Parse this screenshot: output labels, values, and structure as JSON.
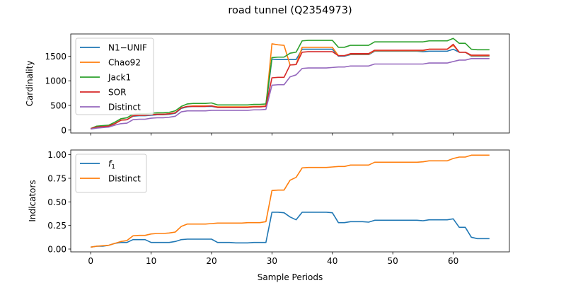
{
  "figure": {
    "title": "road tunnel (Q2354973)"
  },
  "chart_data": [
    {
      "type": "line",
      "title": "",
      "xlabel": "",
      "ylabel": "Cardinality",
      "xlim": [
        -3.3,
        69.3
      ],
      "ylim": [
        -60,
        1950
      ],
      "xticks": [
        0,
        10,
        20,
        30,
        40,
        50,
        60
      ],
      "xticklabels_visible": false,
      "yticks": [
        0,
        500,
        1000,
        1500
      ],
      "legend": "upper-left",
      "grid": false,
      "x": [
        0,
        1,
        2,
        3,
        4,
        5,
        6,
        7,
        8,
        9,
        10,
        11,
        12,
        13,
        14,
        15,
        16,
        17,
        18,
        19,
        20,
        21,
        22,
        23,
        24,
        25,
        26,
        27,
        28,
        29,
        30,
        31,
        32,
        33,
        34,
        35,
        36,
        37,
        38,
        39,
        40,
        41,
        42,
        43,
        44,
        45,
        46,
        47,
        48,
        49,
        50,
        51,
        52,
        53,
        54,
        55,
        56,
        57,
        58,
        59,
        60,
        61,
        62,
        63,
        64,
        65,
        66
      ],
      "series": [
        {
          "name": "N1−UNIF",
          "color": "#1f77b4",
          "values": [
            30,
            60,
            70,
            80,
            130,
            200,
            210,
            280,
            290,
            290,
            300,
            310,
            310,
            320,
            340,
            440,
            470,
            480,
            480,
            480,
            480,
            460,
            460,
            460,
            460,
            460,
            460,
            470,
            470,
            480,
            1440,
            1430,
            1430,
            1430,
            1430,
            1640,
            1640,
            1640,
            1640,
            1640,
            1640,
            1500,
            1500,
            1530,
            1530,
            1530,
            1530,
            1600,
            1600,
            1600,
            1600,
            1600,
            1600,
            1600,
            1600,
            1590,
            1600,
            1600,
            1600,
            1600,
            1640,
            1580,
            1580,
            1500,
            1500,
            1500,
            1500
          ]
        },
        {
          "name": "Chao92",
          "color": "#ff7f0e",
          "values": [
            30,
            60,
            70,
            80,
            130,
            200,
            210,
            290,
            300,
            300,
            310,
            320,
            320,
            330,
            350,
            450,
            480,
            490,
            490,
            490,
            490,
            470,
            470,
            470,
            470,
            470,
            470,
            480,
            480,
            490,
            1750,
            1730,
            1720,
            1320,
            1330,
            1680,
            1680,
            1680,
            1680,
            1680,
            1680,
            1510,
            1510,
            1540,
            1540,
            1540,
            1540,
            1610,
            1610,
            1610,
            1610,
            1610,
            1610,
            1610,
            1610,
            1610,
            1640,
            1640,
            1640,
            1640,
            1720,
            1580,
            1580,
            1510,
            1510,
            1510,
            1510
          ]
        },
        {
          "name": "Jack1",
          "color": "#2ca02c",
          "values": [
            30,
            80,
            90,
            100,
            160,
            230,
            250,
            320,
            330,
            330,
            340,
            350,
            350,
            360,
            390,
            480,
            530,
            540,
            540,
            540,
            550,
            510,
            510,
            510,
            510,
            510,
            510,
            520,
            520,
            530,
            1470,
            1480,
            1480,
            1560,
            1580,
            1810,
            1820,
            1820,
            1820,
            1820,
            1820,
            1680,
            1680,
            1720,
            1720,
            1720,
            1720,
            1790,
            1790,
            1790,
            1790,
            1790,
            1790,
            1790,
            1790,
            1790,
            1810,
            1810,
            1810,
            1810,
            1860,
            1760,
            1760,
            1640,
            1630,
            1630,
            1630
          ]
        },
        {
          "name": "SOR",
          "color": "#d62728",
          "values": [
            30,
            60,
            70,
            80,
            130,
            200,
            210,
            290,
            300,
            300,
            310,
            320,
            320,
            330,
            350,
            450,
            480,
            480,
            480,
            480,
            490,
            460,
            460,
            460,
            460,
            460,
            460,
            470,
            470,
            480,
            1060,
            1070,
            1070,
            1320,
            1330,
            1580,
            1590,
            1590,
            1590,
            1590,
            1590,
            1510,
            1510,
            1550,
            1550,
            1550,
            1550,
            1620,
            1620,
            1620,
            1620,
            1620,
            1620,
            1620,
            1620,
            1620,
            1640,
            1640,
            1640,
            1640,
            1740,
            1580,
            1580,
            1520,
            1520,
            1520,
            1520
          ]
        },
        {
          "name": "Distinct",
          "color": "#9467bd",
          "values": [
            20,
            40,
            50,
            60,
            100,
            130,
            140,
            210,
            220,
            220,
            240,
            250,
            250,
            260,
            280,
            370,
            390,
            390,
            390,
            390,
            400,
            400,
            400,
            400,
            400,
            400,
            400,
            410,
            410,
            420,
            910,
            920,
            920,
            1080,
            1120,
            1250,
            1260,
            1260,
            1260,
            1260,
            1270,
            1280,
            1280,
            1300,
            1300,
            1300,
            1300,
            1340,
            1340,
            1340,
            1340,
            1340,
            1340,
            1340,
            1340,
            1340,
            1360,
            1360,
            1360,
            1360,
            1390,
            1420,
            1420,
            1450,
            1450,
            1450,
            1450
          ]
        }
      ]
    },
    {
      "type": "line",
      "title": "",
      "xlabel": "Sample Periods",
      "ylabel": "Indicators",
      "xlim": [
        -3.3,
        69.3
      ],
      "ylim": [
        -0.03,
        1.05
      ],
      "xticks": [
        0,
        10,
        20,
        30,
        40,
        50,
        60
      ],
      "yticks": [
        0,
        0.25,
        0.5,
        0.75,
        1.0
      ],
      "yticklabels": [
        "0.00",
        "0.25",
        "0.50",
        "0.75",
        "1.00"
      ],
      "legend": "upper-left",
      "grid": false,
      "x": [
        0,
        1,
        2,
        3,
        4,
        5,
        6,
        7,
        8,
        9,
        10,
        11,
        12,
        13,
        14,
        15,
        16,
        17,
        18,
        19,
        20,
        21,
        22,
        23,
        24,
        25,
        26,
        27,
        28,
        29,
        30,
        31,
        32,
        33,
        34,
        35,
        36,
        37,
        38,
        39,
        40,
        41,
        42,
        43,
        44,
        45,
        46,
        47,
        48,
        49,
        50,
        51,
        52,
        53,
        54,
        55,
        56,
        57,
        58,
        59,
        60,
        61,
        62,
        63,
        64,
        65,
        66
      ],
      "series": [
        {
          "name": "f1",
          "label_base": "f",
          "label_sub": "1",
          "color": "#1f77b4",
          "values": [
            0.02,
            0.03,
            0.03,
            0.04,
            0.06,
            0.07,
            0.07,
            0.1,
            0.1,
            0.1,
            0.07,
            0.07,
            0.07,
            0.07,
            0.08,
            0.1,
            0.105,
            0.105,
            0.105,
            0.105,
            0.105,
            0.07,
            0.07,
            0.07,
            0.065,
            0.065,
            0.065,
            0.07,
            0.07,
            0.07,
            0.39,
            0.39,
            0.385,
            0.34,
            0.31,
            0.39,
            0.39,
            0.39,
            0.39,
            0.39,
            0.385,
            0.28,
            0.28,
            0.29,
            0.29,
            0.29,
            0.285,
            0.305,
            0.305,
            0.305,
            0.305,
            0.305,
            0.305,
            0.305,
            0.305,
            0.3,
            0.31,
            0.31,
            0.31,
            0.31,
            0.32,
            0.23,
            0.23,
            0.125,
            0.11,
            0.11,
            0.11
          ]
        },
        {
          "name": "Distinct",
          "color": "#ff7f0e",
          "values": [
            0.02,
            0.03,
            0.035,
            0.04,
            0.06,
            0.08,
            0.09,
            0.14,
            0.145,
            0.145,
            0.16,
            0.165,
            0.165,
            0.17,
            0.18,
            0.24,
            0.265,
            0.265,
            0.265,
            0.265,
            0.27,
            0.275,
            0.275,
            0.275,
            0.275,
            0.275,
            0.28,
            0.28,
            0.28,
            0.29,
            0.62,
            0.625,
            0.625,
            0.73,
            0.76,
            0.86,
            0.865,
            0.865,
            0.865,
            0.865,
            0.87,
            0.875,
            0.875,
            0.89,
            0.89,
            0.89,
            0.89,
            0.92,
            0.92,
            0.92,
            0.92,
            0.92,
            0.92,
            0.92,
            0.92,
            0.925,
            0.935,
            0.935,
            0.935,
            0.935,
            0.96,
            0.975,
            0.975,
            0.995,
            0.995,
            0.995,
            0.995
          ]
        }
      ]
    }
  ]
}
